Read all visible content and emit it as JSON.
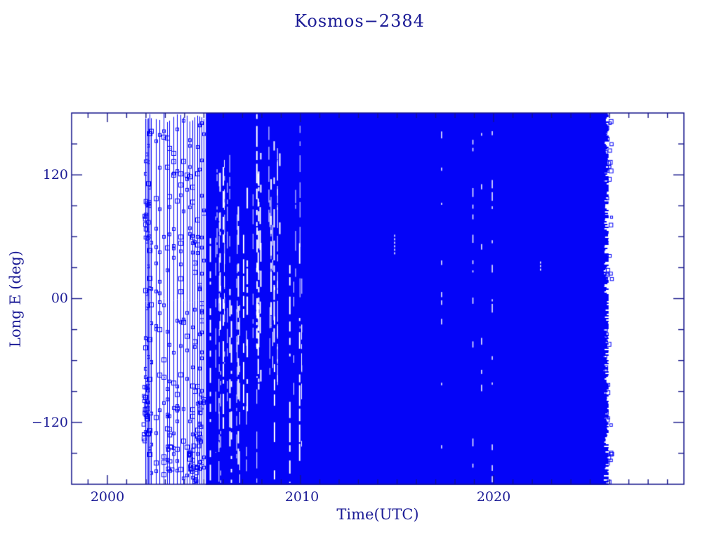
{
  "title": "Kosmos−2384",
  "axes": {
    "x_label": "Time(UTC)",
    "y_label": "Long E (deg)",
    "x_tick_labels": [
      "2000",
      "2010",
      "2020"
    ],
    "y_tick_labels": [
      "120",
      "00",
      "−120"
    ]
  },
  "colors": {
    "background": "#ffffff",
    "axis_navy": "#15158a",
    "text_navy": "#1c1c96",
    "data_blue": "#0404f8"
  },
  "chart_data": {
    "type": "scatter",
    "title": "Kosmos−2384",
    "xlabel": "Time(UTC)",
    "ylabel": "Long E (deg)",
    "xlim": [
      1998.15,
      2029.85
    ],
    "ylim": [
      -180,
      180
    ],
    "x_major_ticks": [
      2000,
      2010,
      2020
    ],
    "x_minor_step": 1,
    "y_major_ticks": [
      -120,
      0,
      120
    ],
    "y_minor_step": 30,
    "grid": false,
    "legend": false,
    "marker": "open-square",
    "color": "#0404f8",
    "phases": [
      {
        "period": [
          2002.0,
          2005.1
        ],
        "mode": "sparse fast-drift tracks: near-vertical lines with open-square data points spanning -180 to 180 deg"
      },
      {
        "period": [
          2005.1,
          2026.0
        ],
        "mode": "dense continuous longitude drift covering all longitudes -180 to 180 deg (solid fill)"
      }
    ],
    "sparse": {
      "lines": [
        2001.96,
        2002.04,
        2002.11,
        2002.18,
        2002.25,
        2002.51,
        2002.69,
        2002.91,
        2003.09,
        2003.2,
        2003.42,
        2003.6,
        2003.78,
        2003.93,
        2004.11,
        2004.25,
        2004.4,
        2004.51,
        2004.65,
        2004.76,
        2004.87,
        2004.98
      ],
      "clusters": [
        {
          "year": 2002.0,
          "deg": -110,
          "spread": 28,
          "count": 22
        },
        {
          "year": 2002.07,
          "deg": 75,
          "spread": 20,
          "count": 16
        },
        {
          "year": 2003.25,
          "deg": -150,
          "spread": 18,
          "count": 10
        },
        {
          "year": 2004.35,
          "deg": -155,
          "spread": 15,
          "count": 12
        },
        {
          "year": 2004.55,
          "deg": -170,
          "spread": 8,
          "count": 10
        },
        {
          "year": 2004.82,
          "deg": -120,
          "spread": 30,
          "count": 14
        }
      ]
    },
    "dense": {
      "start": 2005.1,
      "end": 2025.95
    },
    "white_band": {
      "start": 2005.25,
      "end": 2010.3,
      "streaks": 46
    },
    "dashed_streaks": [
      {
        "year": 2017.28,
        "coverage": 0.38
      },
      {
        "year": 2018.9,
        "coverage": 0.3
      },
      {
        "year": 2019.35,
        "coverage": 0.22
      },
      {
        "year": 2019.9,
        "coverage": 0.34
      }
    ],
    "short_streaks": [
      {
        "year": 2014.85,
        "deg_from": 43,
        "deg_to": 62
      },
      {
        "year": 2022.4,
        "deg_from": 27,
        "deg_to": 36
      }
    ],
    "render": {
      "seed": 1337
    }
  }
}
